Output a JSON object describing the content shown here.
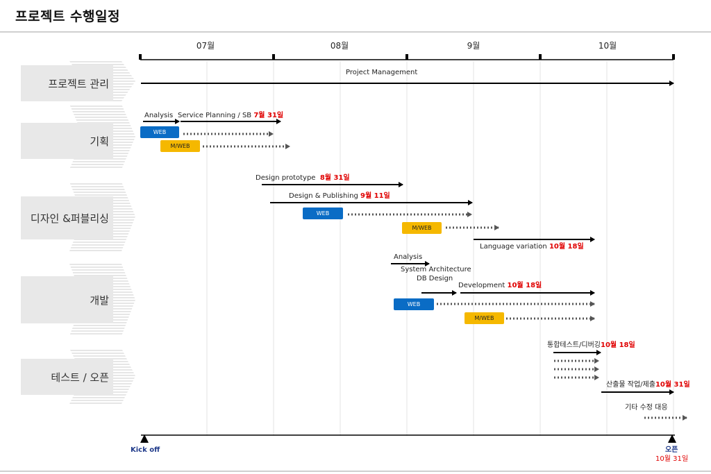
{
  "page_title": "프로젝트 수행일정",
  "months": [
    "07월",
    "08월",
    "9월",
    "10월"
  ],
  "phases": [
    "프로젝트 관리",
    "기획",
    "디자인 &퍼블리싱",
    "개발",
    "테스트 / 오픈"
  ],
  "tasks": {
    "pm": "Project Management",
    "analysis": "Analysis",
    "service_planning": "Service Planning / SB",
    "service_planning_date": "7월 31일",
    "design_prototype": "Design prototype",
    "design_prototype_date": "8월 31일",
    "design_publishing": "Design & Publishing",
    "design_publishing_date": "9월 11일",
    "language_variation": "Language variation",
    "language_variation_date": "10월 18일",
    "dev_analysis": "Analysis",
    "system_architecture": "System Architecture",
    "db_design": "DB Design",
    "development": "Development",
    "development_date": "10월 18일",
    "integration_test": "통합테스트/디버깅",
    "integration_test_date": "10월 18일",
    "deliverables": "산출물 작업/제출",
    "deliverables_date": "10월 31일",
    "misc_fix": "기타 수정 대응"
  },
  "badges": {
    "web": "WEB",
    "mweb": "M/WEB"
  },
  "milestones": {
    "kickoff": "Kick off",
    "open": "오픈",
    "open_date": "10월 31일"
  },
  "colors": {
    "web": "#0a6cc5",
    "mweb": "#f5b800",
    "date_red": "#e00000",
    "milestone_blue": "#1f3a8a"
  }
}
